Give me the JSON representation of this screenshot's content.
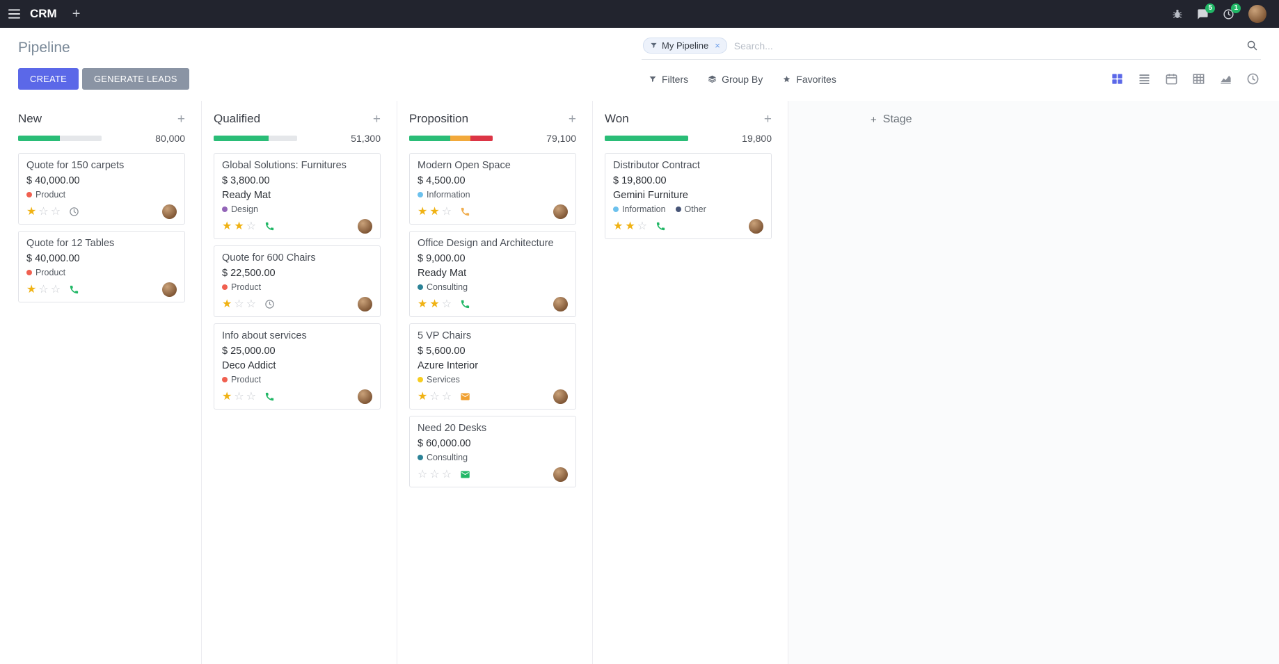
{
  "navbar": {
    "app_name": "CRM",
    "messages_badge": "5",
    "activities_badge": "1"
  },
  "icons": {
    "plus": "+",
    "close": "×",
    "star_filled": "★",
    "star_empty": "☆"
  },
  "colors": {
    "accent": "#5b68e8",
    "navbar_bg": "#22242e",
    "success": "#2abd77",
    "warning": "#f2a93b",
    "danger": "#dc3545",
    "star_gold": "#f0b213",
    "badge_green": "#21b766"
  },
  "control_panel": {
    "title": "Pipeline",
    "buttons": {
      "create": "CREATE",
      "generate_leads": "GENERATE LEADS"
    },
    "search": {
      "facet": "My Pipeline",
      "placeholder": "Search..."
    },
    "filters": "Filters",
    "group_by": "Group By",
    "favorites": "Favorites"
  },
  "kanban": {
    "stage_adder": "Stage",
    "columns": [
      {
        "name": "New",
        "total": "80,000",
        "progress": [
          {
            "color": "#2abd77",
            "pct": 50
          }
        ],
        "cards": [
          {
            "title": "Quote for 150 carpets",
            "amount": "$ 40,000.00",
            "tags": [
              {
                "label": "Product",
                "color": "#F06050"
              }
            ],
            "stars": 1,
            "activity": {
              "type": "clock",
              "color": "#8a9097"
            }
          },
          {
            "title": "Quote for 12 Tables",
            "amount": "$ 40,000.00",
            "tags": [
              {
                "label": "Product",
                "color": "#F06050"
              }
            ],
            "stars": 1,
            "activity": {
              "type": "phone",
              "color": "#21b766"
            }
          }
        ]
      },
      {
        "name": "Qualified",
        "total": "51,300",
        "progress": [
          {
            "color": "#2abd77",
            "pct": 66
          }
        ],
        "cards": [
          {
            "title": "Global Solutions: Furnitures",
            "amount": "$ 3,800.00",
            "company": "Ready Mat",
            "tags": [
              {
                "label": "Design",
                "color": "#9365B8"
              }
            ],
            "stars": 2,
            "activity": {
              "type": "phone",
              "color": "#21b766"
            }
          },
          {
            "title": "Quote for 600 Chairs",
            "amount": "$ 22,500.00",
            "tags": [
              {
                "label": "Product",
                "color": "#F06050"
              }
            ],
            "stars": 1,
            "activity": {
              "type": "clock",
              "color": "#8a9097"
            }
          },
          {
            "title": "Info about services",
            "amount": "$ 25,000.00",
            "company": "Deco Addict",
            "tags": [
              {
                "label": "Product",
                "color": "#F06050"
              }
            ],
            "stars": 1,
            "activity": {
              "type": "phone",
              "color": "#21b766"
            }
          }
        ]
      },
      {
        "name": "Proposition",
        "total": "79,100",
        "progress": [
          {
            "color": "#2abd77",
            "pct": 49
          },
          {
            "color": "#f2a93b",
            "pct": 24
          },
          {
            "color": "#dc3545",
            "pct": 27
          }
        ],
        "cards": [
          {
            "title": "Modern Open Space",
            "amount": "$ 4,500.00",
            "tags": [
              {
                "label": "Information",
                "color": "#6CC1ED"
              }
            ],
            "stars": 2,
            "activity": {
              "type": "phone",
              "color": "#f0ad4e"
            }
          },
          {
            "title": "Office Design and Architecture",
            "amount": "$ 9,000.00",
            "company": "Ready Mat",
            "tags": [
              {
                "label": "Consulting",
                "color": "#2C8397"
              }
            ],
            "stars": 2,
            "activity": {
              "type": "phone",
              "color": "#21b766"
            }
          },
          {
            "title": "5 VP Chairs",
            "amount": "$ 5,600.00",
            "company": "Azure Interior",
            "tags": [
              {
                "label": "Services",
                "color": "#F7CD1F"
              }
            ],
            "stars": 1,
            "activity": {
              "type": "envelope",
              "color": "#f0a030"
            }
          },
          {
            "title": "Need 20 Desks",
            "amount": "$ 60,000.00",
            "tags": [
              {
                "label": "Consulting",
                "color": "#2C8397"
              }
            ],
            "stars": 0,
            "activity": {
              "type": "envelope",
              "color": "#21b766"
            }
          }
        ]
      },
      {
        "name": "Won",
        "total": "19,800",
        "progress": [
          {
            "color": "#2abd77",
            "pct": 100
          }
        ],
        "cards": [
          {
            "title": "Distributor Contract",
            "amount": "$ 19,800.00",
            "company": "Gemini Furniture",
            "tags": [
              {
                "label": "Information",
                "color": "#6CC1ED"
              },
              {
                "label": "Other",
                "color": "#475577"
              }
            ],
            "stars": 2,
            "activity": {
              "type": "phone",
              "color": "#21b766"
            }
          }
        ]
      }
    ]
  }
}
